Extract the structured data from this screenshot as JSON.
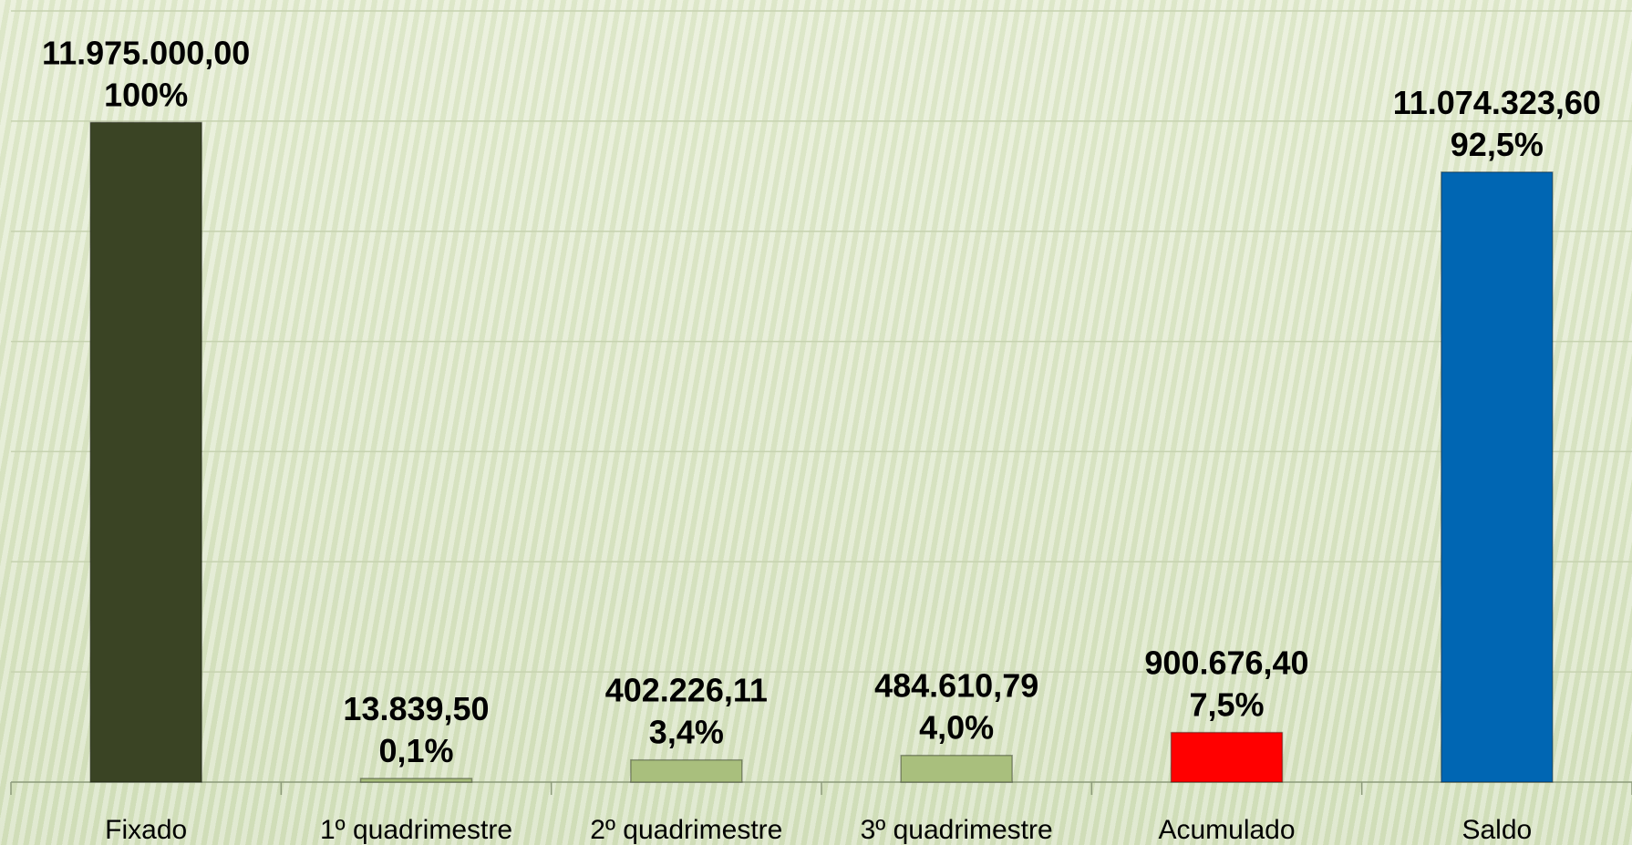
{
  "chart_data": {
    "type": "bar",
    "categories": [
      "Fixado",
      "1º quadrimestre",
      "2º quadrimestre",
      "3º quadrimestre",
      "Acumulado",
      "Saldo"
    ],
    "values": [
      11975000.0,
      13839.5,
      402226.11,
      484610.79,
      900676.4,
      11074323.6
    ],
    "value_labels": [
      "11.975.000,00",
      "13.839,50",
      "402.226,11",
      "484.610,79",
      "900.676,40",
      "11.074.323,60"
    ],
    "percent_labels": [
      "100%",
      "0,1%",
      "3,4%",
      "4,0%",
      "7,5%",
      "92,5%"
    ],
    "colors": [
      "#3a4424",
      "#a9bf7d",
      "#a9bf7d",
      "#a9bf7d",
      "#ff0000",
      "#0066b3"
    ],
    "title": "",
    "xlabel": "",
    "ylabel": "",
    "ylim": [
      0,
      14000000
    ],
    "grid": true,
    "legend": "none"
  }
}
